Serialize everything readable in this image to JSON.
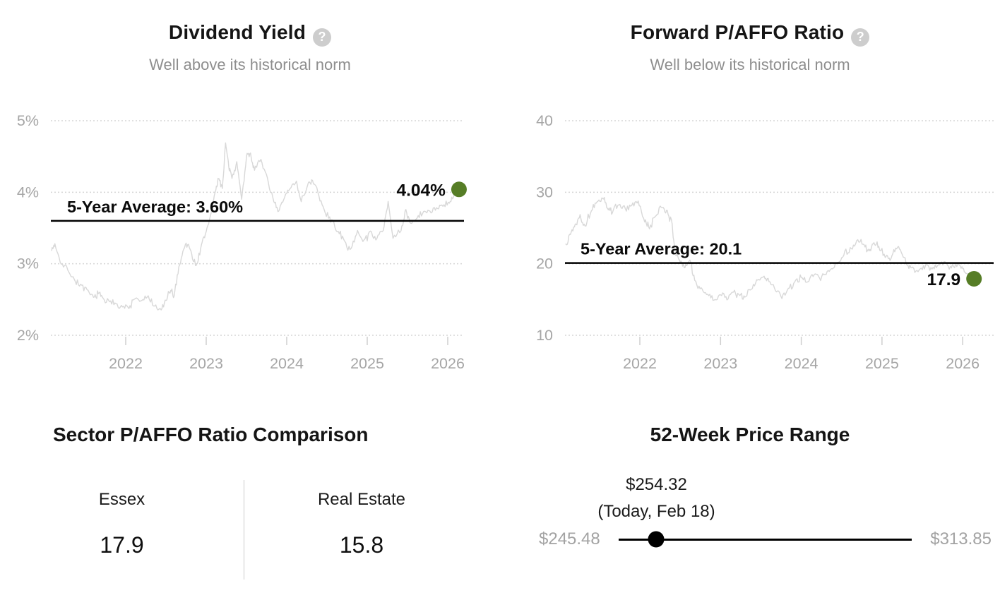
{
  "colors": {
    "accent_green_dot": "#567d26",
    "series_line": "#d8d8d8",
    "grid_line": "#d5d5d5",
    "tick_mark": "#cfcfcf",
    "axis_label": "#a6a6a6",
    "average_line": "#000000",
    "annotation_text": "#0a0a0a",
    "title_text": "#151515",
    "subtitle_text": "#8e8e8e"
  },
  "help_glyph": "?",
  "chart_data": [
    {
      "type": "line",
      "title": "Dividend Yield",
      "subtitle": "Well above its historical norm",
      "ylabel": "",
      "xlabel": "",
      "ylim": [
        2,
        5
      ],
      "xlim": [
        2021.08,
        2026.2
      ],
      "grid": "dotted-horizontal",
      "legend": "none",
      "y_tick_labels": [
        "5%",
        "4%",
        "3%",
        "2%"
      ],
      "y_tick_values": [
        5,
        4,
        3,
        2
      ],
      "x_tick_labels": [
        "2022",
        "2023",
        "2024",
        "2025",
        "2026"
      ],
      "average_label": "5-Year Average: 3.60%",
      "average_value": 3.6,
      "current_label": "4.04%",
      "current_value": 4.04,
      "points": [
        [
          2021.08,
          3.18
        ],
        [
          2021.12,
          3.28
        ],
        [
          2021.2,
          3.0
        ],
        [
          2021.28,
          2.93
        ],
        [
          2021.36,
          2.78
        ],
        [
          2021.44,
          2.7
        ],
        [
          2021.52,
          2.62
        ],
        [
          2021.6,
          2.52
        ],
        [
          2021.66,
          2.6
        ],
        [
          2021.72,
          2.5
        ],
        [
          2021.8,
          2.46
        ],
        [
          2021.88,
          2.45
        ],
        [
          2021.96,
          2.4
        ],
        [
          2022.04,
          2.38
        ],
        [
          2022.12,
          2.52
        ],
        [
          2022.2,
          2.47
        ],
        [
          2022.28,
          2.54
        ],
        [
          2022.36,
          2.4
        ],
        [
          2022.44,
          2.35
        ],
        [
          2022.5,
          2.5
        ],
        [
          2022.56,
          2.62
        ],
        [
          2022.6,
          2.55
        ],
        [
          2022.66,
          2.95
        ],
        [
          2022.72,
          3.22
        ],
        [
          2022.78,
          3.28
        ],
        [
          2022.84,
          3.05
        ],
        [
          2022.88,
          2.98
        ],
        [
          2022.94,
          3.25
        ],
        [
          2023.0,
          3.45
        ],
        [
          2023.06,
          3.7
        ],
        [
          2023.12,
          4.05
        ],
        [
          2023.16,
          4.2
        ],
        [
          2023.2,
          4.05
        ],
        [
          2023.24,
          4.68
        ],
        [
          2023.28,
          4.35
        ],
        [
          2023.32,
          4.2
        ],
        [
          2023.38,
          4.42
        ],
        [
          2023.44,
          3.9
        ],
        [
          2023.5,
          4.5
        ],
        [
          2023.55,
          4.55
        ],
        [
          2023.6,
          4.3
        ],
        [
          2023.68,
          4.45
        ],
        [
          2023.76,
          4.2
        ],
        [
          2023.84,
          3.85
        ],
        [
          2023.9,
          3.72
        ],
        [
          2023.96,
          3.9
        ],
        [
          2024.04,
          4.05
        ],
        [
          2024.12,
          4.15
        ],
        [
          2024.18,
          3.88
        ],
        [
          2024.26,
          4.1
        ],
        [
          2024.32,
          4.18
        ],
        [
          2024.4,
          3.95
        ],
        [
          2024.48,
          3.7
        ],
        [
          2024.56,
          3.6
        ],
        [
          2024.64,
          3.45
        ],
        [
          2024.72,
          3.3
        ],
        [
          2024.8,
          3.2
        ],
        [
          2024.88,
          3.45
        ],
        [
          2024.96,
          3.32
        ],
        [
          2025.04,
          3.45
        ],
        [
          2025.12,
          3.35
        ],
        [
          2025.2,
          3.48
        ],
        [
          2025.26,
          3.88
        ],
        [
          2025.32,
          3.35
        ],
        [
          2025.42,
          3.45
        ],
        [
          2025.48,
          3.75
        ],
        [
          2025.54,
          3.55
        ],
        [
          2025.62,
          3.65
        ],
        [
          2025.7,
          3.72
        ],
        [
          2025.78,
          3.74
        ],
        [
          2025.86,
          3.77
        ],
        [
          2025.94,
          3.8
        ],
        [
          2026.02,
          3.85
        ],
        [
          2026.08,
          3.95
        ],
        [
          2026.14,
          4.04
        ]
      ]
    },
    {
      "type": "line",
      "title": "Forward P/AFFO Ratio",
      "subtitle": "Well below its historical norm",
      "ylabel": "",
      "xlabel": "",
      "ylim": [
        10,
        40
      ],
      "xlim": [
        2021.08,
        2026.2
      ],
      "grid": "dotted-horizontal",
      "legend": "none",
      "y_tick_labels": [
        "40",
        "30",
        "20",
        "10"
      ],
      "y_tick_values": [
        40,
        30,
        20,
        10
      ],
      "x_tick_labels": [
        "2022",
        "2023",
        "2024",
        "2025",
        "2026"
      ],
      "average_label": "5-Year Average: 20.1",
      "average_value": 20.1,
      "current_label": "17.9",
      "current_value": 17.9,
      "points": [
        [
          2021.08,
          22.8
        ],
        [
          2021.14,
          24.2
        ],
        [
          2021.2,
          25.6
        ],
        [
          2021.26,
          26.8
        ],
        [
          2021.32,
          25.2
        ],
        [
          2021.4,
          27.5
        ],
        [
          2021.47,
          28.5
        ],
        [
          2021.54,
          29.3
        ],
        [
          2021.6,
          27.8
        ],
        [
          2021.66,
          27.2
        ],
        [
          2021.74,
          28.4
        ],
        [
          2021.82,
          27.6
        ],
        [
          2021.9,
          28.2
        ],
        [
          2021.98,
          28.6
        ],
        [
          2022.06,
          26.0
        ],
        [
          2022.12,
          25.0
        ],
        [
          2022.2,
          26.8
        ],
        [
          2022.28,
          28.0
        ],
        [
          2022.34,
          27.4
        ],
        [
          2022.4,
          25.5
        ],
        [
          2022.44,
          21.5
        ],
        [
          2022.5,
          20.3
        ],
        [
          2022.56,
          19.6
        ],
        [
          2022.62,
          20.6
        ],
        [
          2022.68,
          17.6
        ],
        [
          2022.76,
          16.5
        ],
        [
          2022.84,
          15.6
        ],
        [
          2022.92,
          14.9
        ],
        [
          2023.0,
          15.8
        ],
        [
          2023.08,
          15.1
        ],
        [
          2023.16,
          16.2
        ],
        [
          2023.24,
          15.6
        ],
        [
          2023.3,
          15.2
        ],
        [
          2023.38,
          16.4
        ],
        [
          2023.46,
          17.8
        ],
        [
          2023.54,
          18.3
        ],
        [
          2023.6,
          17.6
        ],
        [
          2023.68,
          16.4
        ],
        [
          2023.76,
          15.3
        ],
        [
          2023.84,
          16.6
        ],
        [
          2023.92,
          17.4
        ],
        [
          2024.0,
          18.2
        ],
        [
          2024.08,
          17.4
        ],
        [
          2024.16,
          18.6
        ],
        [
          2024.24,
          17.8
        ],
        [
          2024.32,
          18.9
        ],
        [
          2024.4,
          19.4
        ],
        [
          2024.46,
          20.3
        ],
        [
          2024.54,
          21.7
        ],
        [
          2024.62,
          22.0
        ],
        [
          2024.7,
          23.2
        ],
        [
          2024.78,
          22.6
        ],
        [
          2024.84,
          21.7
        ],
        [
          2024.9,
          22.9
        ],
        [
          2024.96,
          22.3
        ],
        [
          2025.04,
          21.0
        ],
        [
          2025.1,
          20.4
        ],
        [
          2025.17,
          22.3
        ],
        [
          2025.24,
          21.7
        ],
        [
          2025.31,
          19.9
        ],
        [
          2025.38,
          19.4
        ],
        [
          2025.46,
          19.0
        ],
        [
          2025.54,
          19.7
        ],
        [
          2025.62,
          19.2
        ],
        [
          2025.7,
          19.8
        ],
        [
          2025.78,
          20.2
        ],
        [
          2025.86,
          19.5
        ],
        [
          2025.94,
          19.9
        ],
        [
          2026.0,
          19.3
        ],
        [
          2026.06,
          18.5
        ],
        [
          2026.14,
          17.9
        ]
      ]
    },
    {
      "type": "table",
      "title": "Sector P/AFFO Ratio Comparison",
      "columns": [
        "Essex",
        "Real Estate"
      ],
      "values": [
        "17.9",
        "15.8"
      ]
    },
    {
      "type": "range",
      "title": "52-Week Price Range",
      "low": 245.48,
      "high": 313.85,
      "current": 254.32,
      "low_label": "$245.48",
      "high_label": "$313.85",
      "current_label": "$254.32",
      "current_sublabel": "(Today, Feb 18)"
    }
  ]
}
